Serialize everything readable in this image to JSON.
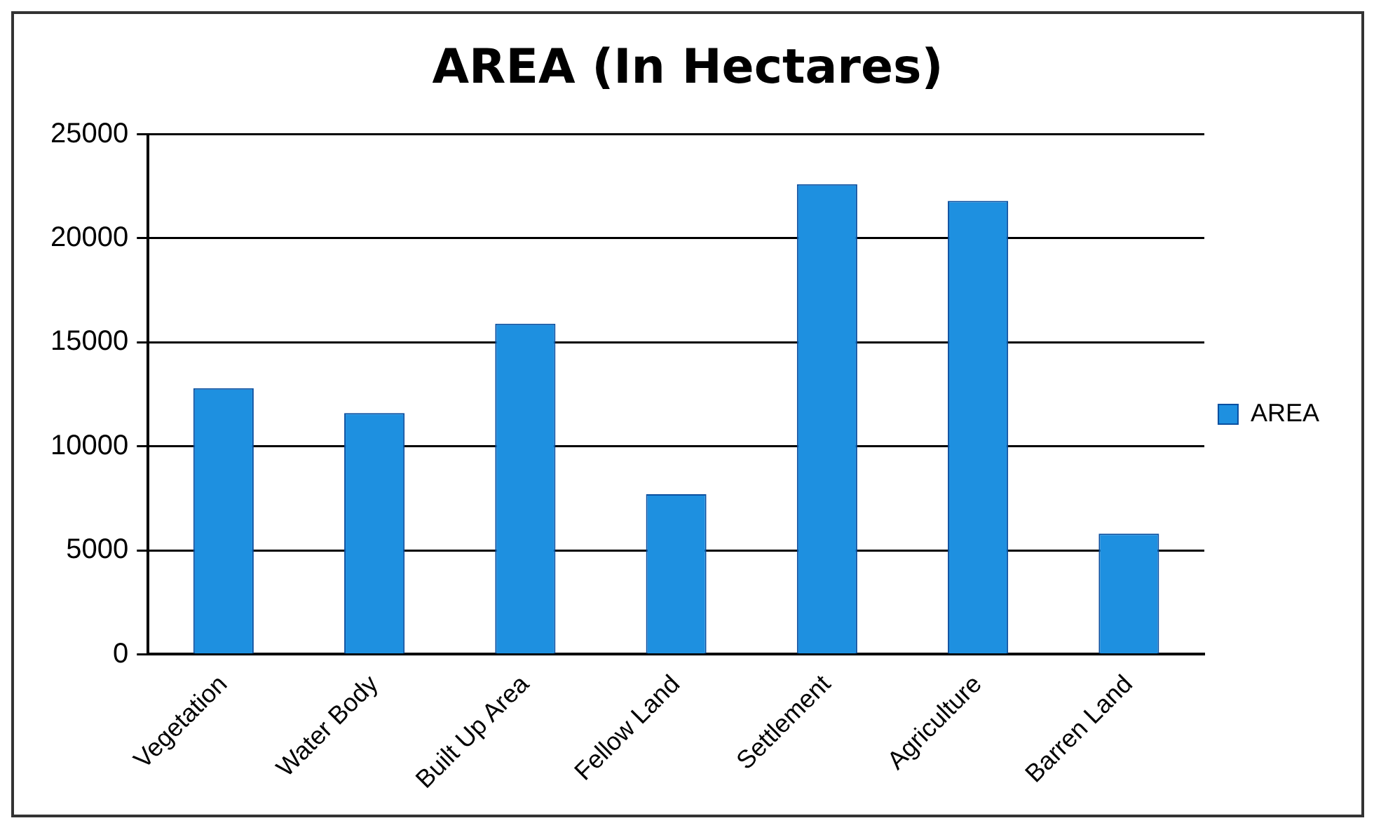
{
  "chart_data": {
    "type": "bar",
    "title": "AREA (In Hectares)",
    "categories": [
      "Vegetation",
      "Water Body",
      "Built Up Area",
      "Fellow Land",
      "Settlement",
      "Agriculture",
      "Barren Land"
    ],
    "series": [
      {
        "name": "AREA",
        "color": "#1e90e0",
        "values": [
          12800,
          11600,
          15900,
          7700,
          22600,
          21800,
          5800
        ]
      }
    ],
    "ylim": [
      0,
      25000
    ],
    "yticks": [
      0,
      5000,
      10000,
      15000,
      20000,
      25000
    ],
    "grid": "y",
    "legend": "right"
  }
}
